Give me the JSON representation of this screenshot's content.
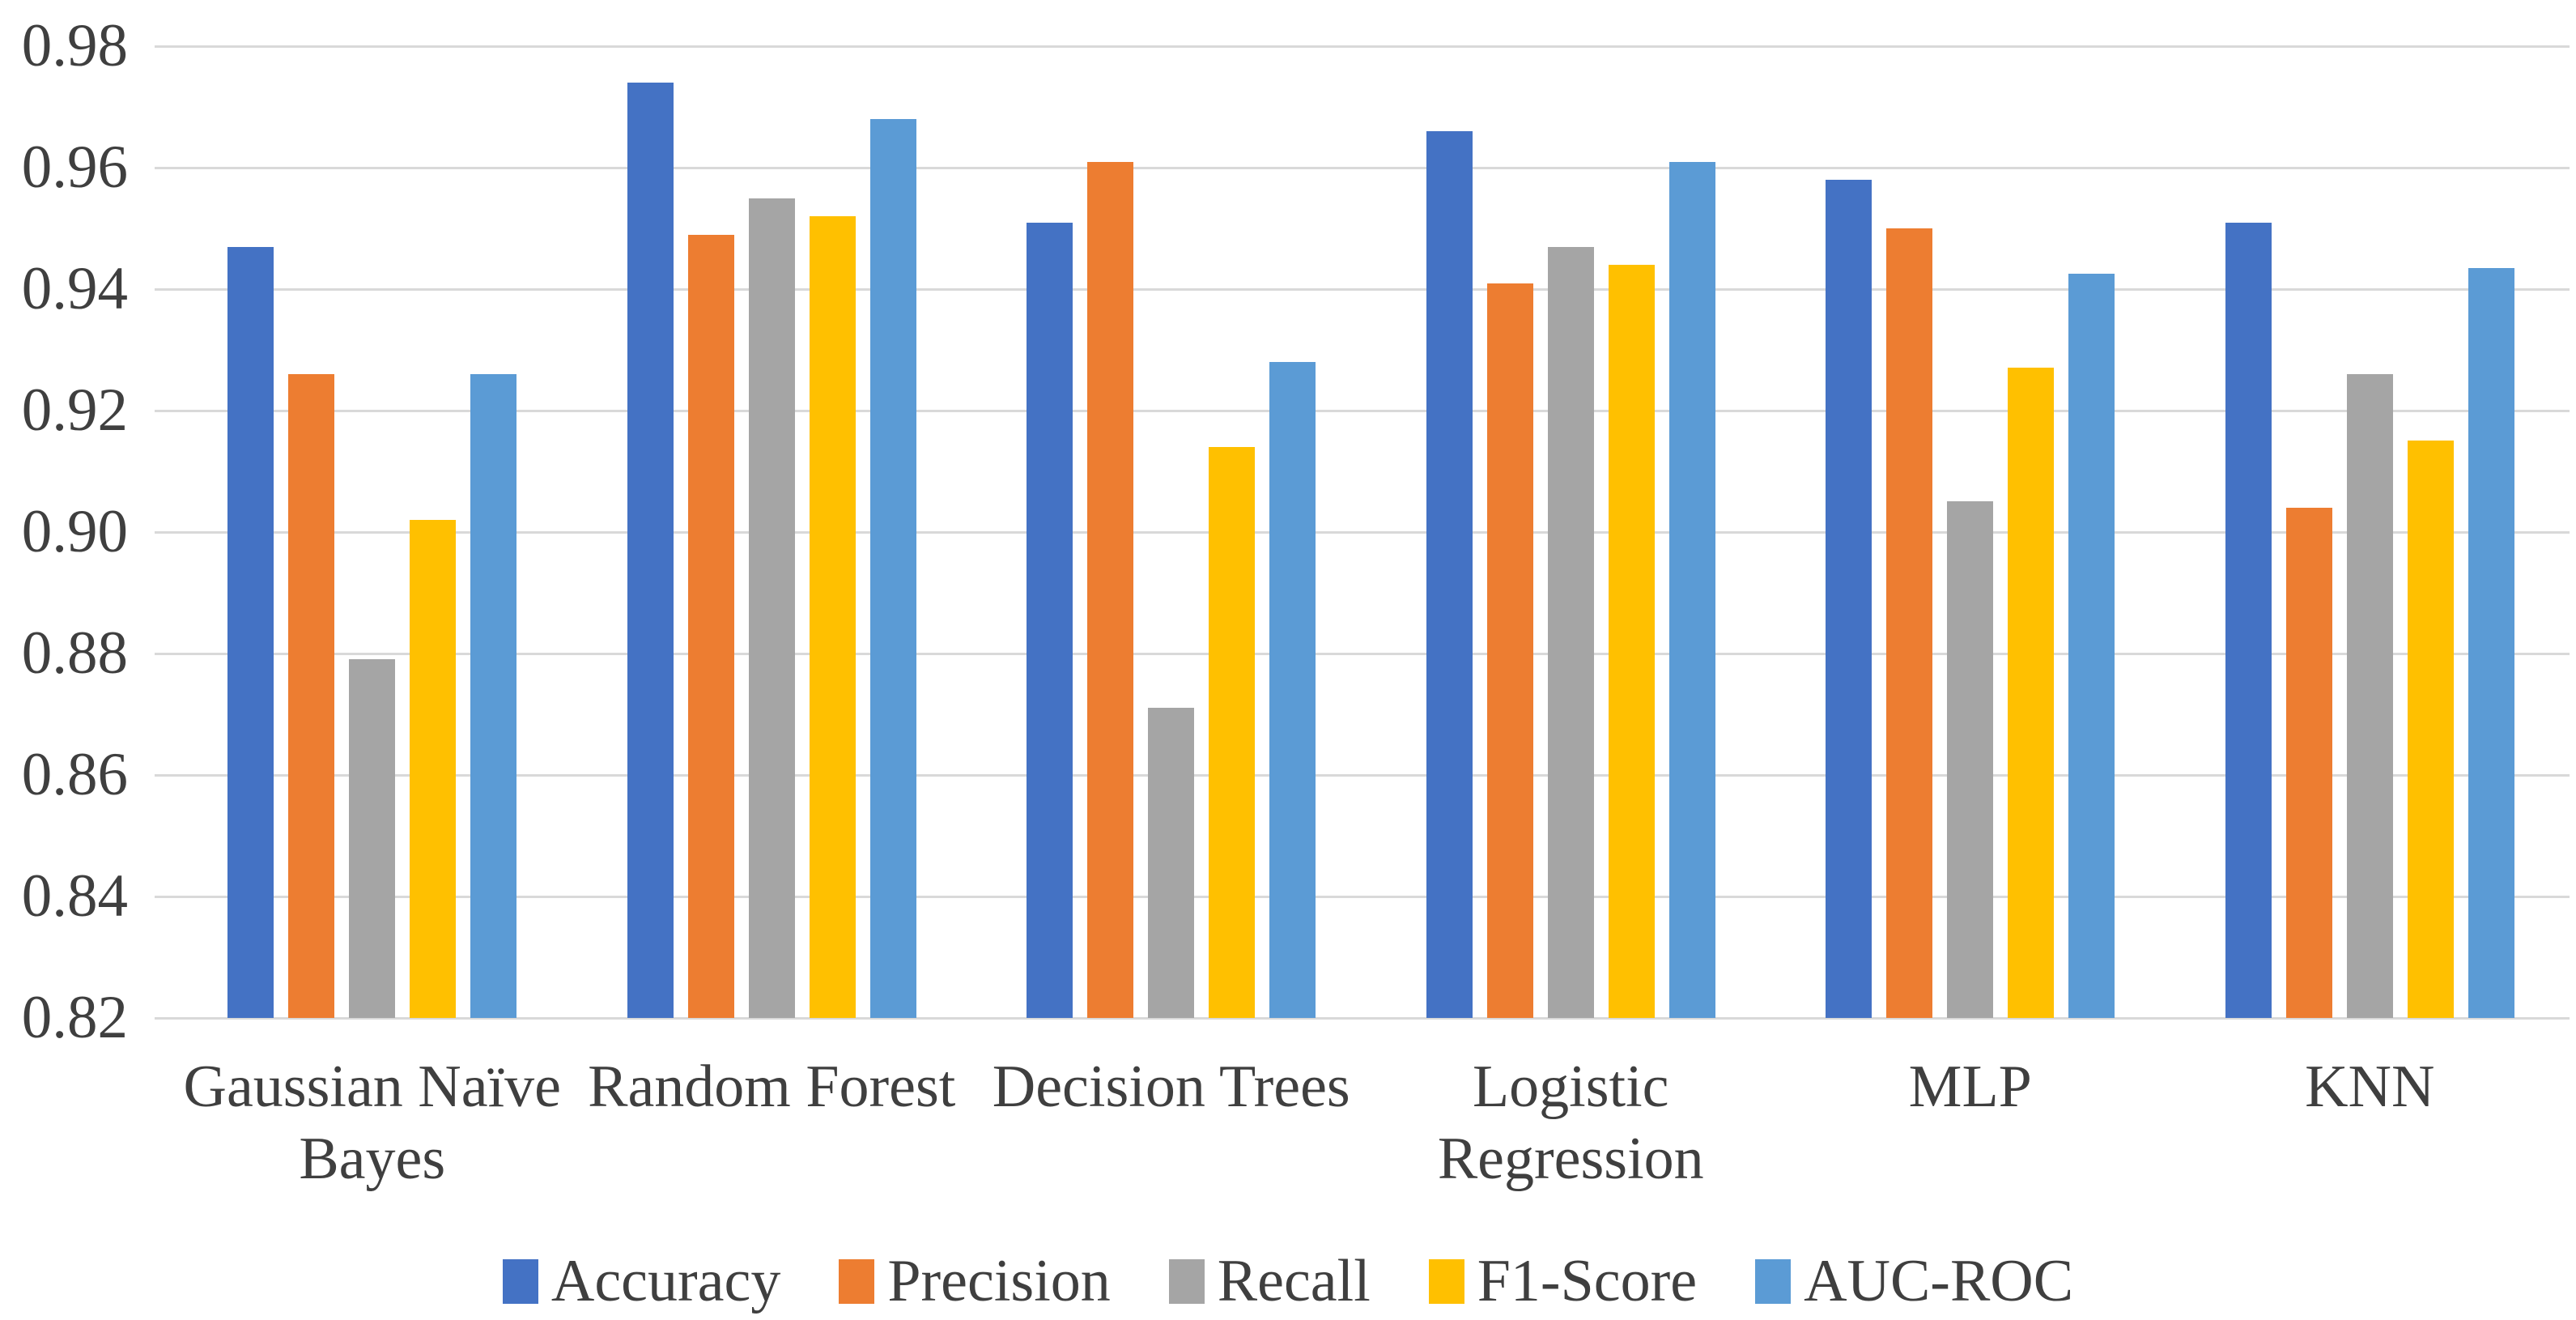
{
  "chart_data": {
    "type": "bar",
    "title": "",
    "xlabel": "",
    "ylabel": "",
    "categories": [
      "Gaussian Naïve Bayes",
      "Random Forest",
      "Decision Trees",
      "Logistic Regression",
      "MLP",
      "KNN"
    ],
    "series": [
      {
        "name": "Accuracy",
        "color": "#4472C4",
        "values": [
          0.947,
          0.974,
          0.951,
          0.966,
          0.958,
          0.951
        ]
      },
      {
        "name": "Precision",
        "color": "#ED7D31",
        "values": [
          0.926,
          0.949,
          0.961,
          0.941,
          0.95,
          0.904
        ]
      },
      {
        "name": "Recall",
        "color": "#A5A5A5",
        "values": [
          0.879,
          0.955,
          0.871,
          0.947,
          0.905,
          0.926
        ]
      },
      {
        "name": "F1-Score",
        "color": "#FFC000",
        "values": [
          0.902,
          0.952,
          0.914,
          0.944,
          0.927,
          0.915
        ]
      },
      {
        "name": "AUC-ROC",
        "color": "#5B9BD5",
        "values": [
          0.926,
          0.968,
          0.928,
          0.961,
          0.9425,
          0.9435
        ]
      }
    ],
    "ylim": [
      0.82,
      0.98
    ],
    "ytick_step": 0.02,
    "ytick_labels": [
      "0.98",
      "0.96",
      "0.94",
      "0.92",
      "0.90",
      "0.88",
      "0.86",
      "0.84",
      "0.82"
    ],
    "grid": true,
    "gridline_color": "#D9D9D9",
    "text_color": "#3F3F3F",
    "background_color": "#FFFFFF",
    "legend_position": "bottom"
  }
}
